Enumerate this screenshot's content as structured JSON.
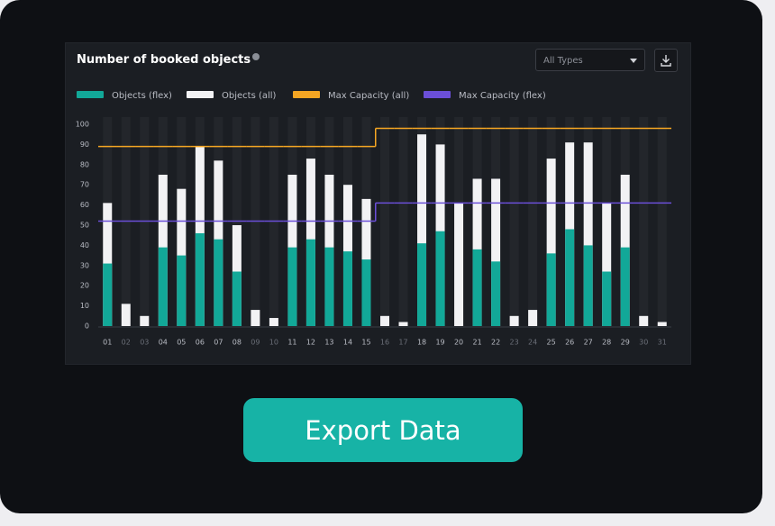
{
  "chart_data": {
    "type": "bar",
    "title": "Number of booked objects",
    "filter": "All Types",
    "categories": [
      "01",
      "02",
      "03",
      "04",
      "05",
      "06",
      "07",
      "08",
      "09",
      "10",
      "11",
      "12",
      "13",
      "14",
      "15",
      "16",
      "17",
      "18",
      "19",
      "20",
      "21",
      "22",
      "23",
      "24",
      "25",
      "26",
      "27",
      "28",
      "29",
      "30",
      "31"
    ],
    "category_colors": [
      "#b9bcc4",
      "#6b6f78",
      "#6b6f78",
      "#b9bcc4",
      "#b9bcc4",
      "#b9bcc4",
      "#b9bcc4",
      "#b9bcc4",
      "#6b6f78",
      "#6b6f78",
      "#b9bcc4",
      "#b9bcc4",
      "#b9bcc4",
      "#b9bcc4",
      "#b9bcc4",
      "#6b6f78",
      "#6b6f78",
      "#b9bcc4",
      "#b9bcc4",
      "#b9bcc4",
      "#b9bcc4",
      "#b9bcc4",
      "#6b6f78",
      "#6b6f78",
      "#b9bcc4",
      "#b9bcc4",
      "#b9bcc4",
      "#b9bcc4",
      "#b9bcc4",
      "#6b6f78",
      "#6b6f78"
    ],
    "series": [
      {
        "name": "Objects (flex)",
        "color": "#12a898",
        "kind": "bar",
        "values": [
          31,
          0,
          0,
          39,
          35,
          46,
          43,
          27,
          0,
          0,
          39,
          43,
          39,
          37,
          33,
          0,
          0,
          41,
          47,
          0,
          38,
          32,
          0,
          0,
          36,
          48,
          40,
          27,
          39,
          0,
          0
        ]
      },
      {
        "name": "Objects (all)",
        "color": "#f2f2f4",
        "kind": "bar",
        "values": [
          61,
          11,
          5,
          75,
          68,
          89,
          82,
          50,
          8,
          4,
          75,
          83,
          75,
          70,
          63,
          5,
          2,
          95,
          90,
          61,
          73,
          73,
          5,
          8,
          83,
          91,
          91,
          61,
          75,
          5,
          2
        ]
      },
      {
        "name": "Max Capacity (all)",
        "color": "#f5a623",
        "kind": "step",
        "values": [
          89,
          89,
          89,
          89,
          89,
          89,
          89,
          89,
          89,
          89,
          89,
          89,
          89,
          89,
          89,
          98,
          98,
          98,
          98,
          98,
          98,
          98,
          98,
          98,
          98,
          98,
          98,
          98,
          98,
          98,
          98
        ]
      },
      {
        "name": "Max Capacity (flex)",
        "color": "#6b4fd8",
        "kind": "step",
        "values": [
          52,
          52,
          52,
          52,
          52,
          52,
          52,
          52,
          52,
          52,
          52,
          52,
          52,
          52,
          52,
          61,
          61,
          61,
          61,
          61,
          61,
          61,
          61,
          61,
          61,
          61,
          61,
          61,
          61,
          61,
          61
        ]
      }
    ],
    "ylim": [
      0,
      100
    ],
    "yticks": [
      0,
      10,
      20,
      30,
      40,
      50,
      60,
      70,
      80,
      90,
      100
    ],
    "grid": false
  },
  "button": {
    "label": "Export Data"
  }
}
